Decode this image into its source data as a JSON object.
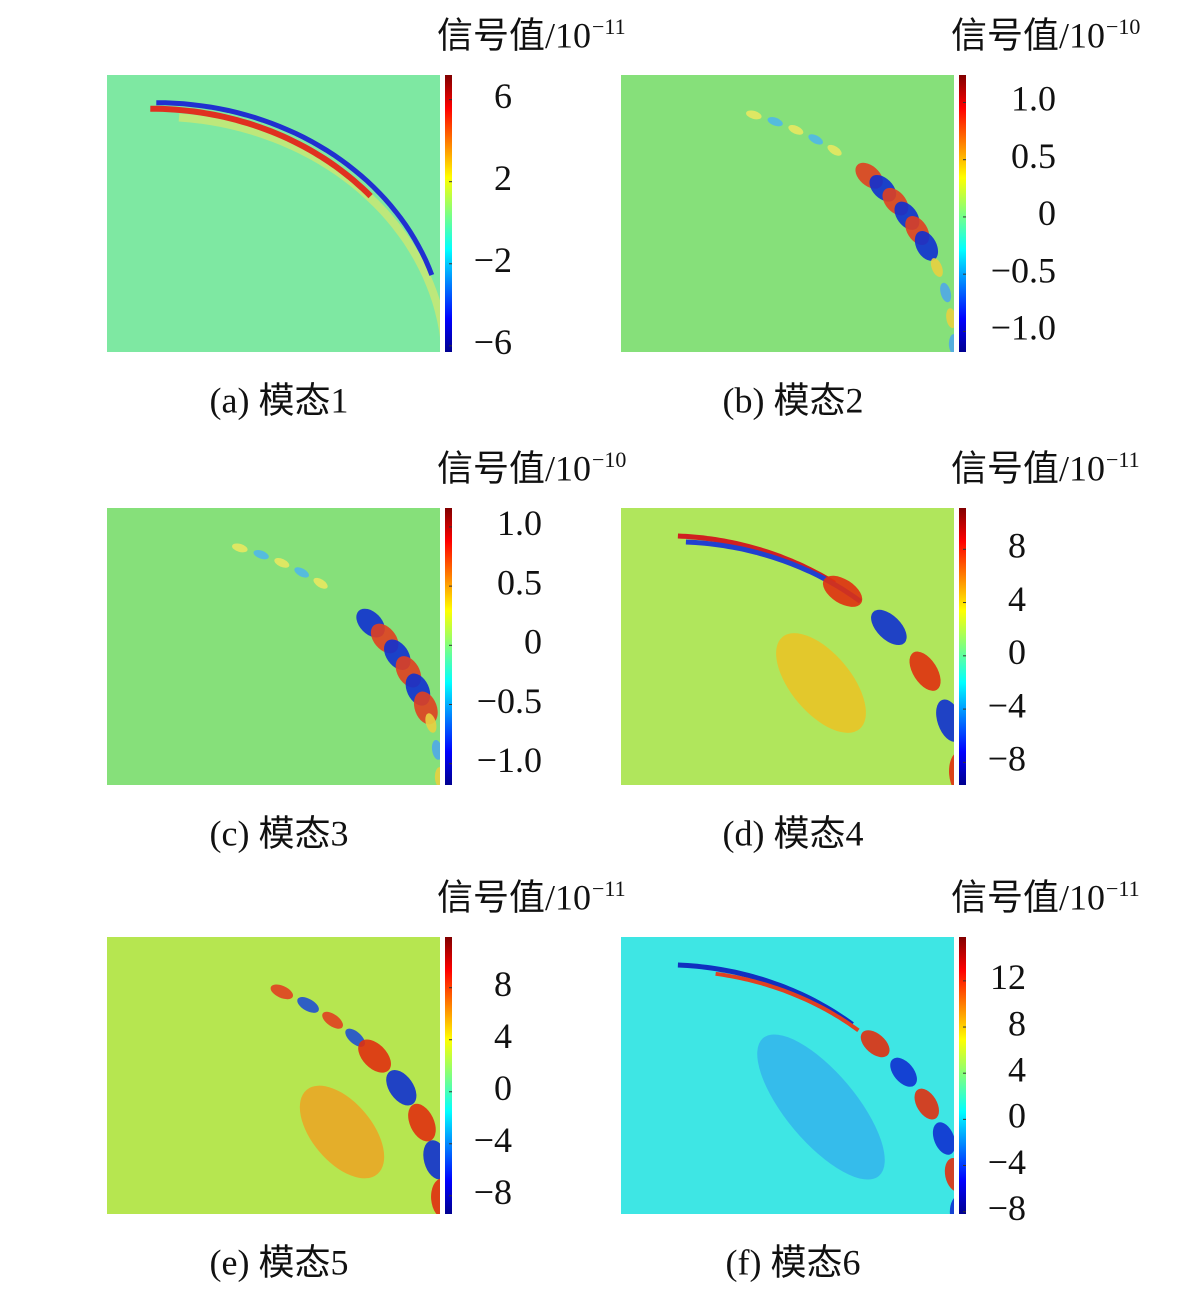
{
  "chart_data": [
    {
      "type": "heatmap",
      "title": "(a) 模态1",
      "colorbar_label": "信号值/10",
      "colorbar_exponent": "−11",
      "background_color": "#7ee8a2",
      "clim": [
        -6.3,
        7.2
      ],
      "cticks": [
        6,
        2,
        {
          "value": -2,
          "label": "−2"
        },
        {
          "value": -6,
          "label": "−6"
        }
      ]
    },
    {
      "type": "heatmap",
      "title": "(b) 模态2",
      "colorbar_label": "信号值/10",
      "colorbar_exponent": "−10",
      "background_color": "#86e07a",
      "clim": [
        -1.18,
        1.24
      ],
      "cticks": [
        {
          "value": 1,
          "label": "1.0"
        },
        0.5,
        0,
        {
          "value": -0.5,
          "label": "−0.5"
        },
        {
          "value": -1,
          "label": "−1.0"
        }
      ]
    },
    {
      "type": "heatmap",
      "title": "(c) 模态3",
      "colorbar_label": "信号值/10",
      "colorbar_exponent": "−10",
      "background_color": "#86e07a",
      "clim": [
        -1.18,
        1.16
      ],
      "cticks": [
        {
          "value": 1,
          "label": "1.0"
        },
        0.5,
        0,
        {
          "value": -0.5,
          "label": "−0.5"
        },
        {
          "value": -1,
          "label": "−1.0"
        }
      ]
    },
    {
      "type": "heatmap",
      "title": "(d) 模态4",
      "colorbar_label": "信号值/10",
      "colorbar_exponent": "−11",
      "background_color": "#b0e65c",
      "clim": [
        -9.7,
        11.1
      ],
      "cticks": [
        8,
        4,
        0,
        {
          "value": -4,
          "label": "−4"
        },
        {
          "value": -8,
          "label": "−8"
        }
      ]
    },
    {
      "type": "heatmap",
      "title": "(e) 模态5",
      "colorbar_label": "信号值/10",
      "colorbar_exponent": "−11",
      "background_color": "#b6e650",
      "clim": [
        -9.4,
        11.9
      ],
      "cticks": [
        8,
        4,
        0,
        {
          "value": -4,
          "label": "−4"
        },
        {
          "value": -8,
          "label": "−8"
        }
      ]
    },
    {
      "type": "heatmap",
      "title": "(f) 模态6",
      "colorbar_label": "信号值/10",
      "colorbar_exponent": "−11",
      "background_color": "#3ee6e4",
      "clim": [
        -8.2,
        15.8
      ],
      "cticks": [
        12,
        8,
        4,
        0,
        {
          "value": -4,
          "label": "−4"
        },
        {
          "value": -8,
          "label": "−8"
        }
      ]
    }
  ]
}
